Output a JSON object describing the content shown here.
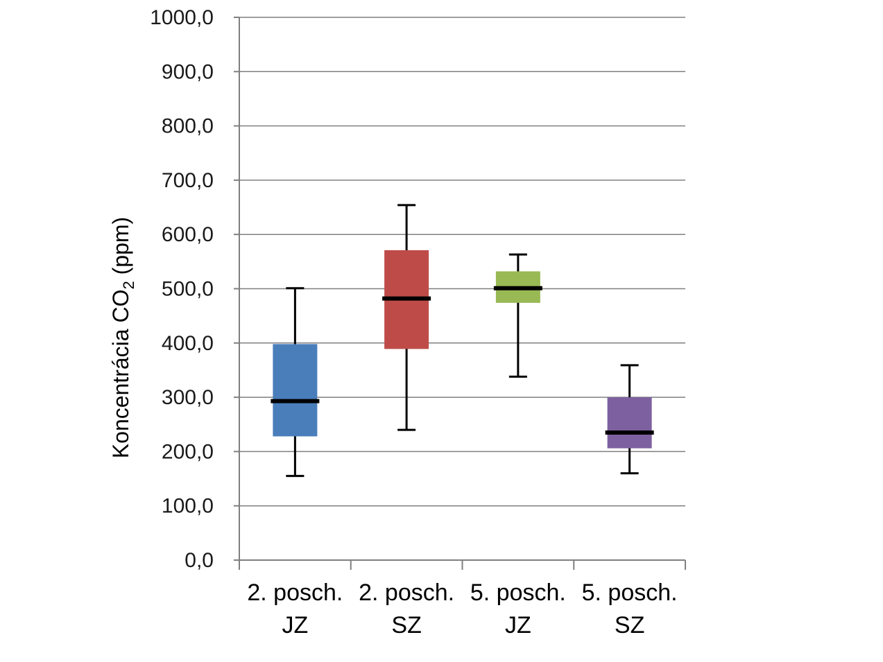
{
  "chart_data": {
    "type": "box",
    "title": "",
    "xlabel": "",
    "ylabel_main": "Koncentrácia CO",
    "ylabel_sub": "2",
    "ylabel_unit": " (ppm)",
    "ylim": [
      0,
      1000
    ],
    "yticks": [
      0,
      100,
      200,
      300,
      400,
      500,
      600,
      700,
      800,
      900,
      1000
    ],
    "ytick_labels": [
      "0,0",
      "100,0",
      "200,0",
      "300,0",
      "400,0",
      "500,0",
      "600,0",
      "700,0",
      "800,0",
      "900,0",
      "1000,0"
    ],
    "grid": true,
    "legend": "none",
    "categories": [
      {
        "line1": "2. posch.",
        "line2": "JZ",
        "min": 155,
        "q1": 228,
        "median": 293,
        "q3": 398,
        "max": 501,
        "color": "#4a7ebb"
      },
      {
        "line1": "2. posch.",
        "line2": "SZ",
        "min": 240,
        "q1": 389,
        "median": 482,
        "q3": 571,
        "max": 654,
        "color": "#be4b48"
      },
      {
        "line1": "5. posch.",
        "line2": "JZ",
        "min": 338,
        "q1": 474,
        "median": 501,
        "q3": 532,
        "max": 563,
        "color": "#98b954"
      },
      {
        "line1": "5. posch.",
        "line2": "SZ",
        "min": 160,
        "q1": 206,
        "median": 235,
        "q3": 300,
        "max": 359,
        "color": "#7d60a0"
      }
    ]
  }
}
